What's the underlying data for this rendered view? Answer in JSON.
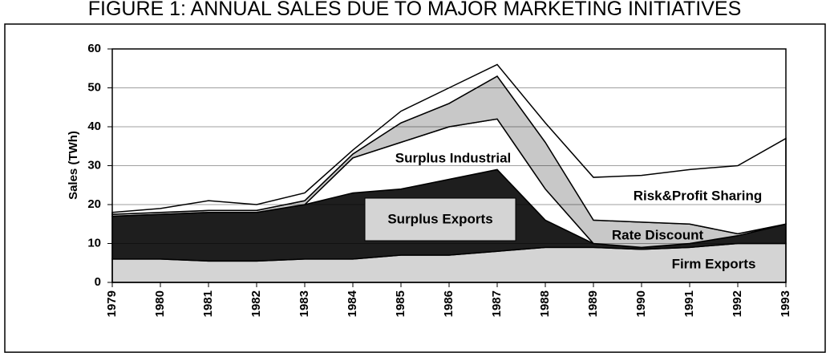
{
  "chart_data": {
    "type": "stacked-area",
    "title": "FIGURE 1: ANNUAL SALES DUE TO MAJOR MARKETING INITIATIVES",
    "y_label": "Sales (TWh)",
    "categories": [
      "1979",
      "1980",
      "1981",
      "1982",
      "1983",
      "1984",
      "1985",
      "1986",
      "1987",
      "1988",
      "1989",
      "1990",
      "1991",
      "1992",
      "1993"
    ],
    "series": [
      {
        "name": "Firm Exports",
        "color": "#d4d4d4",
        "values": [
          6,
          6,
          5.5,
          5.5,
          6,
          6,
          7,
          7,
          8,
          9,
          9,
          8.5,
          9,
          10,
          10
        ]
      },
      {
        "name": "Surplus Exports",
        "color": "#1e1e1e",
        "values": [
          11,
          11.5,
          12.5,
          12.5,
          14,
          17,
          17,
          19.5,
          21,
          7,
          1,
          0.5,
          1,
          2,
          5
        ]
      },
      {
        "name": "Surplus Industrial",
        "color": "#ffffff",
        "values": [
          0,
          0,
          0,
          0,
          0,
          9,
          12,
          13.5,
          13,
          8,
          0,
          0,
          0,
          0,
          0
        ]
      },
      {
        "name": "Rate Discount",
        "color": "#c8c8c8",
        "values": [
          0.5,
          0.5,
          0.5,
          0.5,
          1,
          1,
          5,
          6,
          11,
          12,
          6,
          6.5,
          5,
          0.5,
          0
        ]
      },
      {
        "name": "Risk&Profit Sharing",
        "color": "#ffffff",
        "values": [
          0.5,
          1,
          2.5,
          1.5,
          2,
          1,
          3,
          4,
          3,
          5,
          11,
          12,
          14,
          17.5,
          22
        ]
      }
    ],
    "ylim": [
      0,
      60
    ],
    "yticks": [
      0,
      10,
      20,
      30,
      40,
      50,
      60
    ],
    "grid": true
  }
}
